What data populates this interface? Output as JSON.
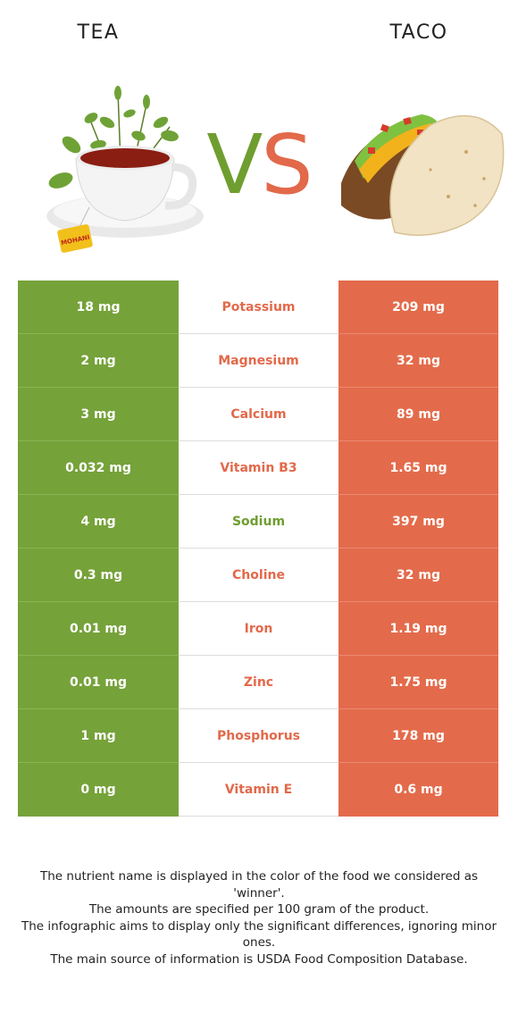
{
  "left_food": {
    "name": "TEA",
    "color": "#76a23a"
  },
  "right_food": {
    "name": "TACO",
    "color": "#e36b4b"
  },
  "vs": {
    "v": "V",
    "s": "S"
  },
  "rows": [
    {
      "left": "18 mg",
      "nutrient": "Potassium",
      "right": "209 mg",
      "winner_color": "#e2694a"
    },
    {
      "left": "2 mg",
      "nutrient": "Magnesium",
      "right": "32 mg",
      "winner_color": "#e2694a"
    },
    {
      "left": "3 mg",
      "nutrient": "Calcium",
      "right": "89 mg",
      "winner_color": "#e2694a"
    },
    {
      "left": "0.032 mg",
      "nutrient": "Vitamin B3",
      "right": "1.65 mg",
      "winner_color": "#e2694a"
    },
    {
      "left": "4 mg",
      "nutrient": "Sodium",
      "right": "397 mg",
      "winner_color": "#6f9e30"
    },
    {
      "left": "0.3 mg",
      "nutrient": "Choline",
      "right": "32 mg",
      "winner_color": "#e2694a"
    },
    {
      "left": "0.01 mg",
      "nutrient": "Iron",
      "right": "1.19 mg",
      "winner_color": "#e2694a"
    },
    {
      "left": "0.01 mg",
      "nutrient": "Zinc",
      "right": "1.75 mg",
      "winner_color": "#e2694a"
    },
    {
      "left": "1 mg",
      "nutrient": "Phosphorus",
      "right": "178 mg",
      "winner_color": "#e2694a"
    },
    {
      "left": "0 mg",
      "nutrient": "Vitamin E",
      "right": "0.6 mg",
      "winner_color": "#e2694a"
    }
  ],
  "footnote": {
    "line1": "The nutrient name is displayed in the color of the food we considered as 'winner'.",
    "line2": "The amounts are specified per 100 gram of the product.",
    "line3": "The infographic aims to display only the significant differences, ignoring minor ones.",
    "line4": "The main source of information is USDA Food Composition Database."
  },
  "images": {
    "left": "tea-cup-icon",
    "right": "taco-icon",
    "tea_bag_label": "MOHANI"
  }
}
